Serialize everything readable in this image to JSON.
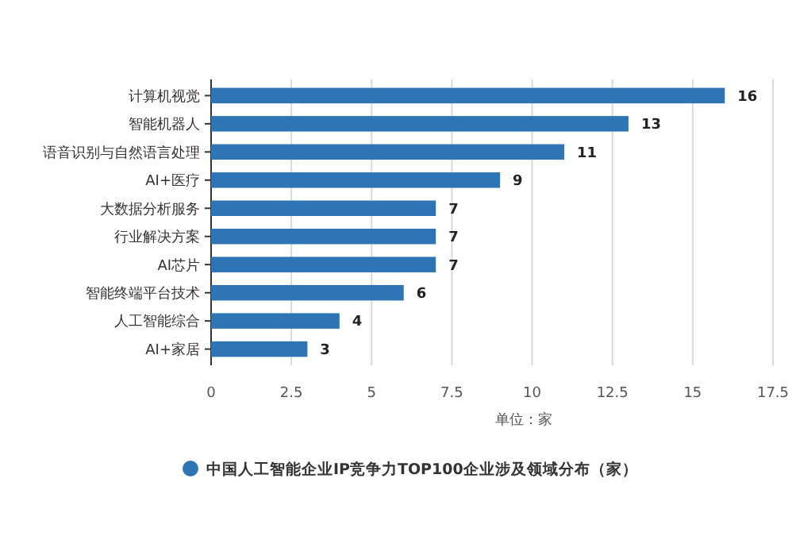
{
  "chart_data": {
    "type": "bar",
    "orientation": "horizontal",
    "categories": [
      "计算机视觉",
      "智能机器人",
      "语音识别与自然语言处理",
      "AI+医疗",
      "大数据分析服务",
      "行业解决方案",
      "AI芯片",
      "智能终端平台技术",
      "人工智能综合",
      "AI+家居"
    ],
    "series": [
      {
        "name": "中国人工智能企业IP竞争力TOP100企业涉及领域分布（家）",
        "color": "#2e75b6",
        "values": [
          16,
          13,
          11,
          9,
          7,
          7,
          7,
          6,
          4,
          3
        ]
      }
    ],
    "xlim": [
      0,
      17.5
    ],
    "xticks": [
      0,
      2.5,
      5,
      7.5,
      10,
      12.5,
      15,
      17.5
    ],
    "xlabel": "单位：家",
    "grid": "x",
    "legend": "bottom",
    "data_labels": true
  }
}
